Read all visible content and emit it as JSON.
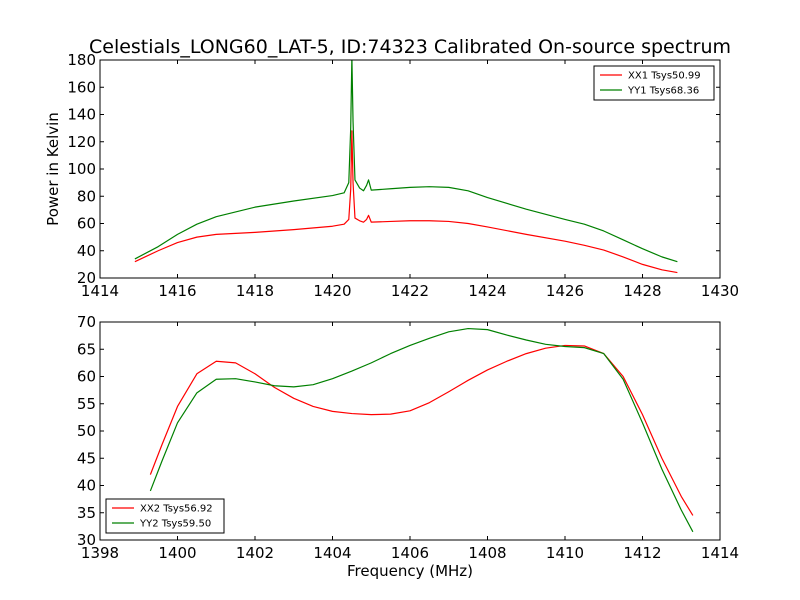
{
  "title": "Celestials_LONG60_LAT-5, ID:74323 Calibrated On-source spectrum",
  "chart_data": [
    {
      "type": "line",
      "ylabel": "Power in Kelvin",
      "xlabel": "",
      "xlim": [
        1414,
        1430
      ],
      "ylim": [
        20,
        180
      ],
      "xticks": [
        1414,
        1416,
        1418,
        1420,
        1422,
        1424,
        1426,
        1428,
        1430
      ],
      "yticks": [
        20,
        40,
        60,
        80,
        100,
        120,
        140,
        160,
        180
      ],
      "legend_position": "top-right",
      "grid": false,
      "series": [
        {
          "name": "XX1 Tsys50.99",
          "color": "#ff0000",
          "x": [
            1414.9,
            1415.5,
            1416.0,
            1416.5,
            1417.0,
            1418.0,
            1419.0,
            1420.0,
            1420.3,
            1420.42,
            1420.47,
            1420.5,
            1420.53,
            1420.58,
            1420.7,
            1420.8,
            1420.88,
            1420.93,
            1421.0,
            1421.5,
            1422.0,
            1422.5,
            1423.0,
            1423.5,
            1424.0,
            1425.0,
            1426.0,
            1426.5,
            1427.0,
            1427.5,
            1428.0,
            1428.5,
            1428.9
          ],
          "y": [
            32,
            40,
            46,
            50,
            52,
            53.5,
            55.5,
            58,
            59.5,
            63,
            85,
            128,
            90,
            64,
            62,
            61,
            63,
            66,
            61,
            61.5,
            62,
            62,
            61.5,
            60,
            57.5,
            52,
            47,
            44,
            40.5,
            35.5,
            30,
            26,
            24
          ]
        },
        {
          "name": "YY1 Tsys68.36",
          "color": "#008000",
          "x": [
            1414.9,
            1415.5,
            1416.0,
            1416.5,
            1417.0,
            1418.0,
            1419.0,
            1420.0,
            1420.3,
            1420.42,
            1420.47,
            1420.5,
            1420.53,
            1420.58,
            1420.7,
            1420.8,
            1420.88,
            1420.93,
            1421.0,
            1421.5,
            1422.0,
            1422.5,
            1423.0,
            1423.5,
            1424.0,
            1425.0,
            1426.0,
            1426.5,
            1427.0,
            1427.5,
            1428.0,
            1428.5,
            1428.9
          ],
          "y": [
            34,
            43,
            52,
            59.5,
            65,
            72,
            76.5,
            80.5,
            82.5,
            90,
            130,
            182,
            135,
            92,
            86,
            84,
            88,
            92,
            84.5,
            85.5,
            86.5,
            87,
            86.5,
            84,
            79,
            70.5,
            63,
            59.5,
            54.5,
            48,
            41.5,
            35.5,
            32
          ]
        }
      ]
    },
    {
      "type": "line",
      "ylabel": "",
      "xlabel": "Frequency (MHz)",
      "xlim": [
        1398,
        1414
      ],
      "ylim": [
        30,
        70
      ],
      "xticks": [
        1398,
        1400,
        1402,
        1404,
        1406,
        1408,
        1410,
        1412,
        1414
      ],
      "yticks": [
        30,
        35,
        40,
        45,
        50,
        55,
        60,
        65,
        70
      ],
      "legend_position": "bottom-left",
      "grid": false,
      "series": [
        {
          "name": "XX2 Tsys56.92",
          "color": "#ff0000",
          "x": [
            1399.3,
            1399.6,
            1400.0,
            1400.5,
            1401.0,
            1401.5,
            1402.0,
            1402.5,
            1403.0,
            1403.5,
            1404.0,
            1404.5,
            1405.0,
            1405.5,
            1406.0,
            1406.5,
            1407.0,
            1407.5,
            1408.0,
            1408.5,
            1409.0,
            1409.5,
            1410.0,
            1410.5,
            1411.0,
            1411.5,
            1412.0,
            1412.5,
            1413.0,
            1413.3
          ],
          "y": [
            42,
            47.5,
            54.5,
            60.5,
            62.8,
            62.5,
            60.5,
            58,
            56,
            54.5,
            53.6,
            53.2,
            53.0,
            53.1,
            53.7,
            55.2,
            57.2,
            59.3,
            61.2,
            62.8,
            64.2,
            65.2,
            65.7,
            65.6,
            64.2,
            60,
            53,
            45,
            38,
            34.5
          ]
        },
        {
          "name": "YY2 Tsys59.50",
          "color": "#008000",
          "x": [
            1399.3,
            1399.6,
            1400.0,
            1400.5,
            1401.0,
            1401.5,
            1402.0,
            1402.5,
            1403.0,
            1403.5,
            1404.0,
            1404.5,
            1405.0,
            1405.5,
            1406.0,
            1406.5,
            1407.0,
            1407.5,
            1408.0,
            1408.5,
            1409.0,
            1409.5,
            1410.0,
            1410.5,
            1411.0,
            1411.5,
            1412.0,
            1412.5,
            1413.0,
            1413.3
          ],
          "y": [
            39,
            44.5,
            51.5,
            57,
            59.5,
            59.6,
            59,
            58.3,
            58.1,
            58.5,
            59.6,
            61,
            62.5,
            64.2,
            65.7,
            67,
            68.2,
            68.8,
            68.6,
            67.6,
            66.7,
            65.9,
            65.5,
            65.3,
            64.2,
            59.5,
            51.5,
            43,
            35.5,
            31.5
          ]
        }
      ]
    }
  ]
}
